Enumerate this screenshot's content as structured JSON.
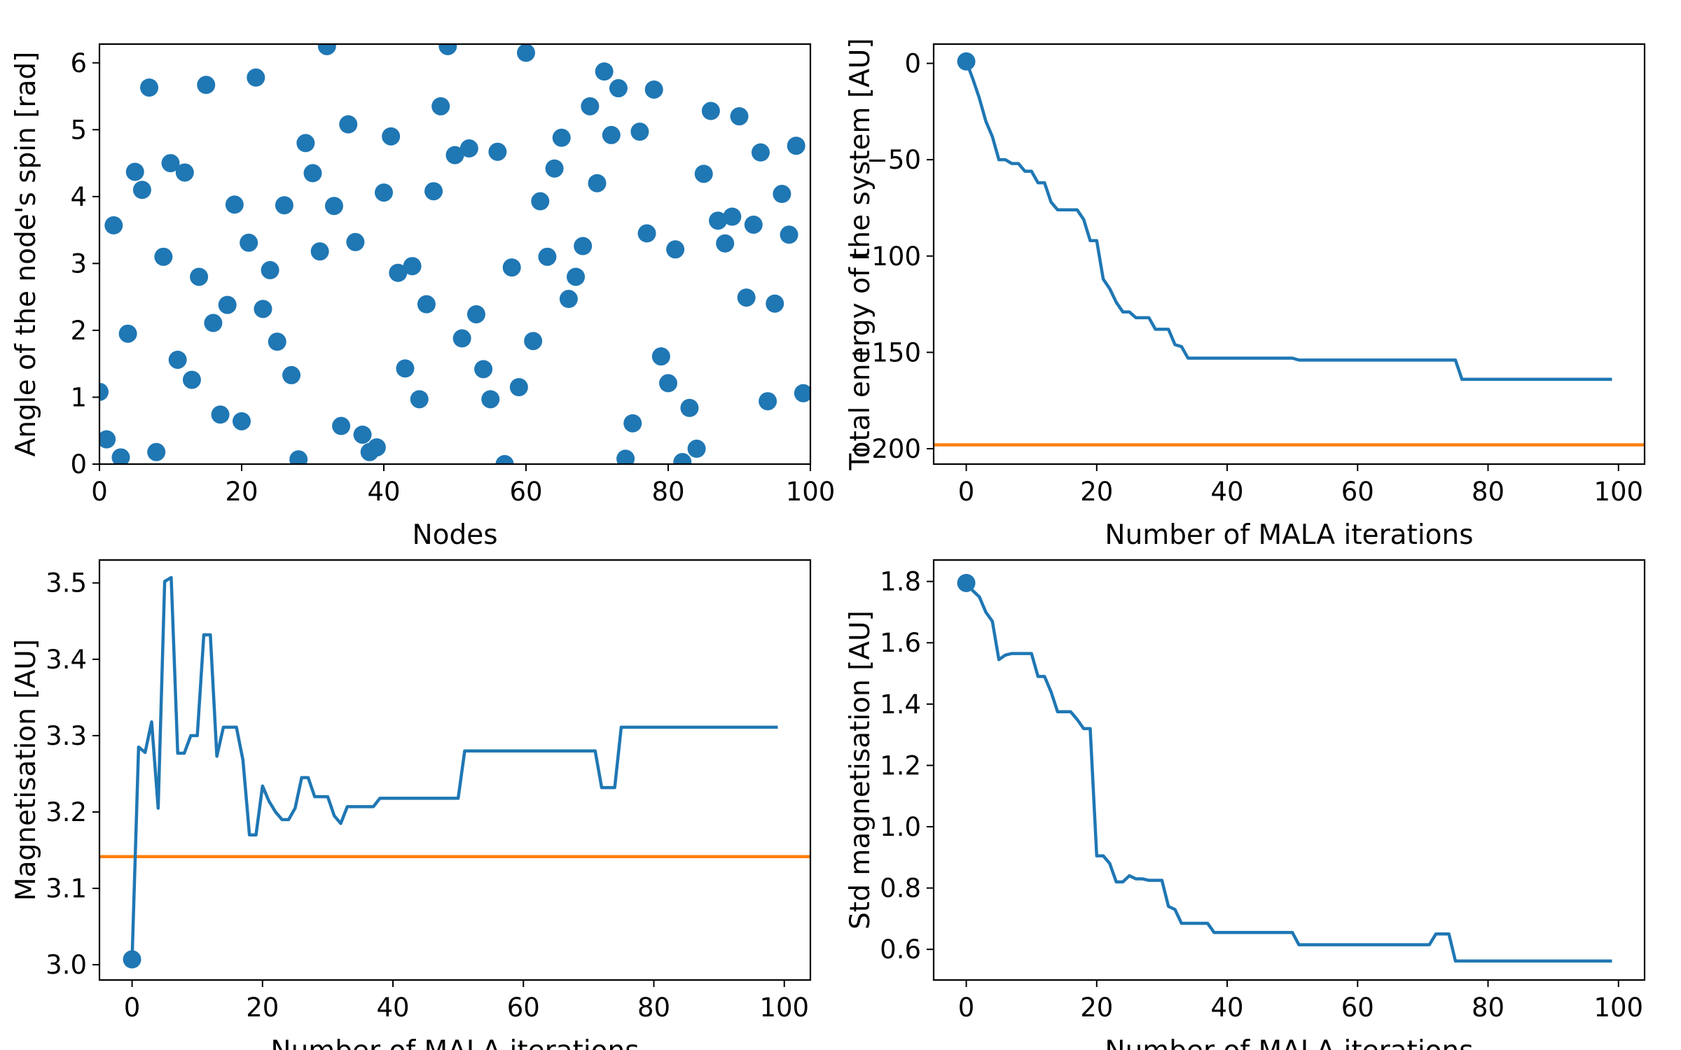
{
  "colors": {
    "series": "#1f77b4",
    "reference": "#ff7f0e",
    "axes": "#000000"
  },
  "chart_data": [
    {
      "type": "scatter",
      "xlabel": "Nodes",
      "ylabel": "Angle of the node's spin [rad]",
      "xlim": [
        0,
        100
      ],
      "ylim": [
        0,
        6.28
      ],
      "xticks": [
        0,
        20,
        40,
        60,
        80,
        100
      ],
      "yticks": [
        0,
        1,
        2,
        3,
        4,
        5,
        6
      ],
      "x": [
        0,
        1,
        2,
        3,
        4,
        5,
        6,
        7,
        8,
        9,
        10,
        11,
        12,
        13,
        14,
        15,
        16,
        17,
        18,
        19,
        20,
        21,
        22,
        23,
        24,
        25,
        26,
        27,
        28,
        29,
        30,
        31,
        32,
        33,
        34,
        35,
        36,
        37,
        38,
        39,
        40,
        41,
        42,
        43,
        44,
        45,
        46,
        47,
        48,
        49,
        50,
        51,
        52,
        53,
        54,
        55,
        56,
        57,
        58,
        59,
        60,
        61,
        62,
        63,
        64,
        65,
        66,
        67,
        68,
        69,
        70,
        71,
        72,
        73,
        74,
        75,
        76,
        77,
        78,
        79,
        80,
        81,
        82,
        83,
        84,
        85,
        86,
        87,
        88,
        89,
        90,
        91,
        92,
        93,
        94,
        95,
        96,
        97,
        98,
        99
      ],
      "y": [
        1.08,
        0.37,
        3.57,
        0.1,
        1.95,
        4.37,
        4.1,
        5.63,
        0.18,
        3.1,
        4.5,
        1.56,
        4.36,
        1.26,
        2.8,
        5.67,
        2.11,
        0.74,
        2.38,
        3.88,
        0.64,
        3.31,
        5.78,
        2.32,
        2.9,
        1.83,
        3.87,
        1.33,
        0.07,
        4.8,
        4.35,
        3.18,
        6.25,
        3.86,
        0.57,
        5.08,
        3.32,
        0.44,
        0.18,
        0.25,
        4.06,
        4.9,
        2.86,
        1.43,
        2.96,
        0.97,
        2.39,
        4.08,
        5.35,
        6.25,
        4.62,
        1.88,
        4.72,
        2.24,
        1.42,
        0.97,
        4.67,
        0.0,
        2.94,
        1.15,
        6.15,
        1.84,
        3.93,
        3.1,
        4.42,
        4.88,
        2.47,
        2.8,
        3.26,
        5.35,
        4.2,
        5.87,
        4.92,
        5.62,
        0.08,
        0.61,
        4.97,
        3.45,
        5.6,
        1.61,
        1.21,
        3.21,
        0.03,
        0.84,
        0.23,
        4.34,
        5.28,
        3.64,
        3.3,
        3.7,
        5.2,
        2.49,
        3.58,
        4.66,
        0.94,
        2.4,
        4.04,
        3.43,
        4.76,
        1.06
      ],
      "grid": false
    },
    {
      "type": "line",
      "xlabel": "Number of MALA iterations",
      "ylabel": "Total energy of the system [AU]",
      "xlim": [
        -5,
        104
      ],
      "ylim": [
        -208,
        10
      ],
      "xticks": [
        0,
        20,
        40,
        60,
        80,
        100
      ],
      "yticks": [
        0,
        -50,
        -100,
        -150,
        -200
      ],
      "hline": -198,
      "marker": [
        0,
        1
      ],
      "x": [
        0,
        1,
        2,
        3,
        4,
        5,
        6,
        7,
        8,
        9,
        10,
        11,
        12,
        13,
        14,
        15,
        16,
        17,
        18,
        19,
        20,
        21,
        22,
        23,
        24,
        25,
        26,
        27,
        28,
        29,
        30,
        31,
        32,
        33,
        34,
        35,
        36,
        37,
        38,
        39,
        40,
        41,
        42,
        43,
        44,
        45,
        46,
        47,
        48,
        49,
        50,
        51,
        52,
        53,
        54,
        55,
        56,
        57,
        58,
        59,
        60,
        61,
        62,
        63,
        64,
        65,
        66,
        67,
        68,
        69,
        70,
        71,
        72,
        73,
        74,
        75,
        76,
        77,
        78,
        79,
        80,
        81,
        82,
        83,
        84,
        85,
        86,
        87,
        88,
        89,
        90,
        91,
        92,
        93,
        94,
        95,
        96,
        97,
        98,
        99
      ],
      "y": [
        1,
        -8,
        -18,
        -30,
        -38,
        -50,
        -50,
        -52,
        -52,
        -56,
        -56,
        -62,
        -62,
        -72,
        -76,
        -76,
        -76,
        -76,
        -81,
        -92,
        -92,
        -112,
        -117,
        -124,
        -129,
        -129,
        -132,
        -132,
        -132,
        -138,
        -138,
        -138,
        -146,
        -147,
        -153,
        -153,
        -153,
        -153,
        -153,
        -153,
        -153,
        -153,
        -153,
        -153,
        -153,
        -153,
        -153,
        -153,
        -153,
        -153,
        -153,
        -154,
        -154,
        -154,
        -154,
        -154,
        -154,
        -154,
        -154,
        -154,
        -154,
        -154,
        -154,
        -154,
        -154,
        -154,
        -154,
        -154,
        -154,
        -154,
        -154,
        -154,
        -154,
        -154,
        -154,
        -154,
        -164,
        -164,
        -164,
        -164,
        -164,
        -164,
        -164,
        -164,
        -164,
        -164,
        -164,
        -164,
        -164,
        -164,
        -164,
        -164,
        -164,
        -164,
        -164,
        -164,
        -164,
        -164,
        -164,
        -164
      ],
      "grid": false
    },
    {
      "type": "line",
      "xlabel": "Number of MALA iterations",
      "ylabel": "Magnetisation [AU]",
      "xlim": [
        -5,
        104
      ],
      "ylim": [
        2.98,
        3.53
      ],
      "xticks": [
        0,
        20,
        40,
        60,
        80,
        100
      ],
      "yticks": [
        3.0,
        3.1,
        3.2,
        3.3,
        3.4,
        3.5
      ],
      "hline": 3.1416,
      "marker": [
        0,
        3.007
      ],
      "x": [
        0,
        1,
        2,
        3,
        4,
        5,
        6,
        7,
        8,
        9,
        10,
        11,
        12,
        13,
        14,
        15,
        16,
        17,
        18,
        19,
        20,
        21,
        22,
        23,
        24,
        25,
        26,
        27,
        28,
        29,
        30,
        31,
        32,
        33,
        34,
        35,
        36,
        37,
        38,
        39,
        40,
        41,
        42,
        43,
        44,
        45,
        46,
        47,
        48,
        49,
        50,
        51,
        52,
        53,
        54,
        55,
        56,
        57,
        58,
        59,
        60,
        61,
        62,
        63,
        64,
        65,
        66,
        67,
        68,
        69,
        70,
        71,
        72,
        73,
        74,
        75,
        76,
        77,
        78,
        79,
        80,
        81,
        82,
        83,
        84,
        85,
        86,
        87,
        88,
        89,
        90,
        91,
        92,
        93,
        94,
        95,
        96,
        97,
        98,
        99
      ],
      "y": [
        3.007,
        3.285,
        3.278,
        3.318,
        3.205,
        3.502,
        3.507,
        3.277,
        3.277,
        3.3,
        3.3,
        3.432,
        3.432,
        3.273,
        3.311,
        3.311,
        3.311,
        3.268,
        3.17,
        3.17,
        3.234,
        3.214,
        3.2,
        3.19,
        3.19,
        3.205,
        3.245,
        3.245,
        3.22,
        3.22,
        3.22,
        3.195,
        3.185,
        3.207,
        3.207,
        3.207,
        3.207,
        3.207,
        3.218,
        3.218,
        3.218,
        3.218,
        3.218,
        3.218,
        3.218,
        3.218,
        3.218,
        3.218,
        3.218,
        3.218,
        3.218,
        3.28,
        3.28,
        3.28,
        3.28,
        3.28,
        3.28,
        3.28,
        3.28,
        3.28,
        3.28,
        3.28,
        3.28,
        3.28,
        3.28,
        3.28,
        3.28,
        3.28,
        3.28,
        3.28,
        3.28,
        3.28,
        3.232,
        3.232,
        3.232,
        3.311,
        3.311,
        3.311,
        3.311,
        3.311,
        3.311,
        3.311,
        3.311,
        3.311,
        3.311,
        3.311,
        3.311,
        3.311,
        3.311,
        3.311,
        3.311,
        3.311,
        3.311,
        3.311,
        3.311,
        3.311,
        3.311,
        3.311,
        3.311,
        3.311
      ],
      "grid": false
    },
    {
      "type": "line",
      "xlabel": "Number of MALA iterations",
      "ylabel": "Std magnetisation [AU]",
      "xlim": [
        -5,
        104
      ],
      "ylim": [
        0.5,
        1.87
      ],
      "xticks": [
        0,
        20,
        40,
        60,
        80,
        100
      ],
      "yticks": [
        0.6,
        0.8,
        1.0,
        1.2,
        1.4,
        1.6,
        1.8
      ],
      "marker": [
        0,
        1.795
      ],
      "x": [
        0,
        1,
        2,
        3,
        4,
        5,
        6,
        7,
        8,
        9,
        10,
        11,
        12,
        13,
        14,
        15,
        16,
        17,
        18,
        19,
        20,
        21,
        22,
        23,
        24,
        25,
        26,
        27,
        28,
        29,
        30,
        31,
        32,
        33,
        34,
        35,
        36,
        37,
        38,
        39,
        40,
        41,
        42,
        43,
        44,
        45,
        46,
        47,
        48,
        49,
        50,
        51,
        52,
        53,
        54,
        55,
        56,
        57,
        58,
        59,
        60,
        61,
        62,
        63,
        64,
        65,
        66,
        67,
        68,
        69,
        70,
        71,
        72,
        73,
        74,
        75,
        76,
        77,
        78,
        79,
        80,
        81,
        82,
        83,
        84,
        85,
        86,
        87,
        88,
        89,
        90,
        91,
        92,
        93,
        94,
        95,
        96,
        97,
        98,
        99
      ],
      "y": [
        1.795,
        1.77,
        1.75,
        1.7,
        1.67,
        1.545,
        1.56,
        1.565,
        1.565,
        1.565,
        1.565,
        1.49,
        1.49,
        1.44,
        1.375,
        1.375,
        1.375,
        1.35,
        1.32,
        1.32,
        0.905,
        0.905,
        0.88,
        0.82,
        0.82,
        0.84,
        0.83,
        0.83,
        0.825,
        0.825,
        0.825,
        0.74,
        0.73,
        0.685,
        0.685,
        0.685,
        0.685,
        0.685,
        0.655,
        0.655,
        0.655,
        0.655,
        0.655,
        0.655,
        0.655,
        0.655,
        0.655,
        0.655,
        0.655,
        0.655,
        0.655,
        0.615,
        0.615,
        0.615,
        0.615,
        0.615,
        0.615,
        0.615,
        0.615,
        0.615,
        0.615,
        0.615,
        0.615,
        0.615,
        0.615,
        0.615,
        0.615,
        0.615,
        0.615,
        0.615,
        0.615,
        0.615,
        0.65,
        0.65,
        0.65,
        0.562,
        0.562,
        0.562,
        0.562,
        0.562,
        0.562,
        0.562,
        0.562,
        0.562,
        0.562,
        0.562,
        0.562,
        0.562,
        0.562,
        0.562,
        0.562,
        0.562,
        0.562,
        0.562,
        0.562,
        0.562,
        0.562,
        0.562,
        0.562,
        0.562
      ],
      "grid": false
    }
  ]
}
